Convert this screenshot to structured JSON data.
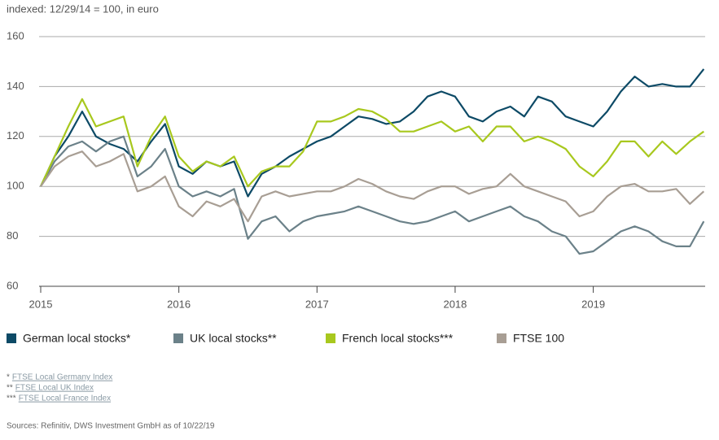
{
  "chart_data": {
    "type": "line",
    "ylabel": "indexed: 12/29/14 = 100, in euro",
    "x": [
      2015,
      2015.1,
      2015.2,
      2015.3,
      2015.4,
      2015.5,
      2015.6,
      2015.7,
      2015.8,
      2015.9,
      2016,
      2016.1,
      2016.2,
      2016.3,
      2016.4,
      2016.5,
      2016.6,
      2016.7,
      2016.8,
      2016.9,
      2017,
      2017.1,
      2017.2,
      2017.3,
      2017.4,
      2017.5,
      2017.6,
      2017.7,
      2017.8,
      2017.9,
      2018,
      2018.1,
      2018.2,
      2018.3,
      2018.4,
      2018.5,
      2018.6,
      2018.7,
      2018.8,
      2018.9,
      2019,
      2019.1,
      2019.2,
      2019.3,
      2019.4,
      2019.5,
      2019.6,
      2019.7,
      2019.8
    ],
    "xlim": [
      2015,
      2019.81
    ],
    "xticks": [
      2015,
      2016,
      2017,
      2018,
      2019
    ],
    "ylim": [
      60,
      160
    ],
    "yticks": [
      60,
      80,
      100,
      120,
      140,
      160
    ],
    "grid": true,
    "series": [
      {
        "name": "German local stocks*",
        "color": "#0d4a66",
        "values": [
          100,
          112,
          120,
          130,
          120,
          117,
          115,
          110,
          118,
          125,
          108,
          105,
          110,
          108,
          110,
          96,
          105,
          108,
          112,
          115,
          118,
          120,
          124,
          128,
          127,
          125,
          126,
          130,
          136,
          138,
          136,
          128,
          126,
          130,
          132,
          128,
          136,
          134,
          128,
          126,
          124,
          130,
          138,
          144,
          140,
          141,
          140,
          140,
          147
        ]
      },
      {
        "name": "UK local stocks**",
        "color": "#6b8189",
        "values": [
          100,
          110,
          116,
          118,
          114,
          118,
          120,
          104,
          108,
          115,
          100,
          96,
          98,
          96,
          99,
          79,
          86,
          88,
          82,
          86,
          88,
          89,
          90,
          92,
          90,
          88,
          86,
          85,
          86,
          88,
          90,
          86,
          88,
          90,
          92,
          88,
          86,
          82,
          80,
          73,
          74,
          78,
          82,
          84,
          82,
          78,
          76,
          76,
          86
        ]
      },
      {
        "name": "French local stocks***",
        "color": "#a8c81e",
        "values": [
          100,
          112,
          124,
          135,
          124,
          126,
          128,
          108,
          120,
          128,
          112,
          106,
          110,
          108,
          112,
          100,
          106,
          108,
          108,
          114,
          126,
          126,
          128,
          131,
          130,
          127,
          122,
          122,
          124,
          126,
          122,
          124,
          118,
          124,
          124,
          118,
          120,
          118,
          115,
          108,
          104,
          110,
          118,
          118,
          112,
          118,
          113,
          118,
          122
        ]
      },
      {
        "name": "FTSE 100",
        "color": "#a89e94",
        "values": [
          100,
          108,
          112,
          114,
          108,
          110,
          113,
          98,
          100,
          104,
          92,
          88,
          94,
          92,
          95,
          86,
          96,
          98,
          96,
          97,
          98,
          98,
          100,
          103,
          101,
          98,
          96,
          95,
          98,
          100,
          100,
          97,
          99,
          100,
          105,
          100,
          98,
          96,
          94,
          88,
          90,
          96,
          100,
          101,
          98,
          98,
          99,
          93,
          98
        ]
      }
    ]
  },
  "footnotes": [
    {
      "marker": "*",
      "text": "FTSE Local Germany Index"
    },
    {
      "marker": "**",
      "text": "FTSE Local UK Index"
    },
    {
      "marker": "***",
      "text": "FTSE Local France Index"
    }
  ],
  "source": "Sources: Refinitiv, DWS Investment GmbH as of 10/22/19"
}
